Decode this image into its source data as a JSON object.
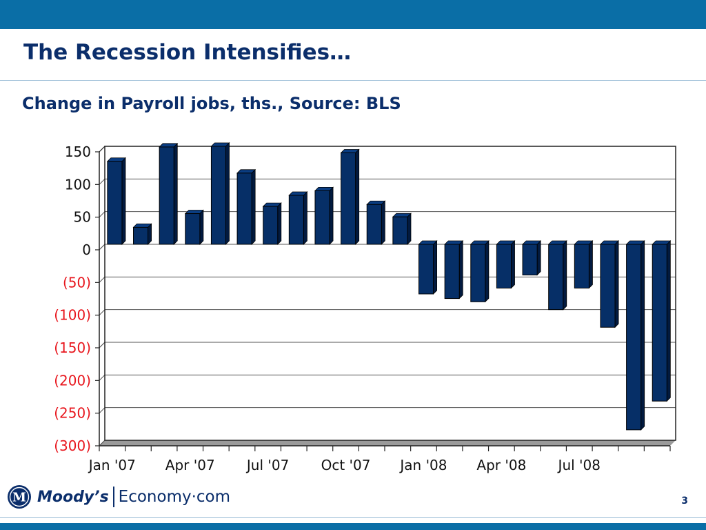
{
  "slide": {
    "title": "The Recession Intensifies…",
    "subtitle": "Change in Payroll jobs, ths., Source: BLS",
    "page_number": "3",
    "logo": {
      "brand": "Moody’s",
      "site": "Economy·com",
      "mark_letter": "M"
    },
    "colors": {
      "band": "#0a6ea6",
      "title": "#0b2e6b",
      "bar": "#062f67",
      "negative_tick": "#e8161d"
    }
  },
  "chart_data": {
    "type": "bar",
    "title": "Change in Payroll jobs, ths., Source: BLS",
    "x_labels": [
      "Jan '07",
      "Apr '07",
      "Jul '07",
      "Oct '07",
      "Jan '08",
      "Apr '08",
      "Jul '08"
    ],
    "categories": [
      "Jan '07",
      "Feb '07",
      "Mar '07",
      "Apr '07",
      "May '07",
      "Jun '07",
      "Jul '07",
      "Aug '07",
      "Sep '07",
      "Oct '07",
      "Nov '07",
      "Dec '07",
      "Jan '08",
      "Feb '08",
      "Mar '08",
      "Apr '08",
      "May '08",
      "Jun '08",
      "Jul '08",
      "Aug '08",
      "Sep '08",
      "Oct '08"
    ],
    "values": [
      127,
      26,
      149,
      47,
      150,
      109,
      58,
      75,
      82,
      140,
      61,
      42,
      -76,
      -83,
      -88,
      -67,
      -47,
      -100,
      -67,
      -127,
      -284,
      -240
    ],
    "ylim": [
      -300,
      150
    ],
    "y_ticks": [
      150,
      100,
      50,
      0,
      -50,
      -100,
      -150,
      -200,
      -250,
      -300
    ],
    "y_tick_labels": [
      "150",
      "100",
      "50",
      "0",
      "(50)",
      "(100)",
      "(150)",
      "(200)",
      "(250)",
      "(300)"
    ],
    "grid": true,
    "legend": "none"
  }
}
